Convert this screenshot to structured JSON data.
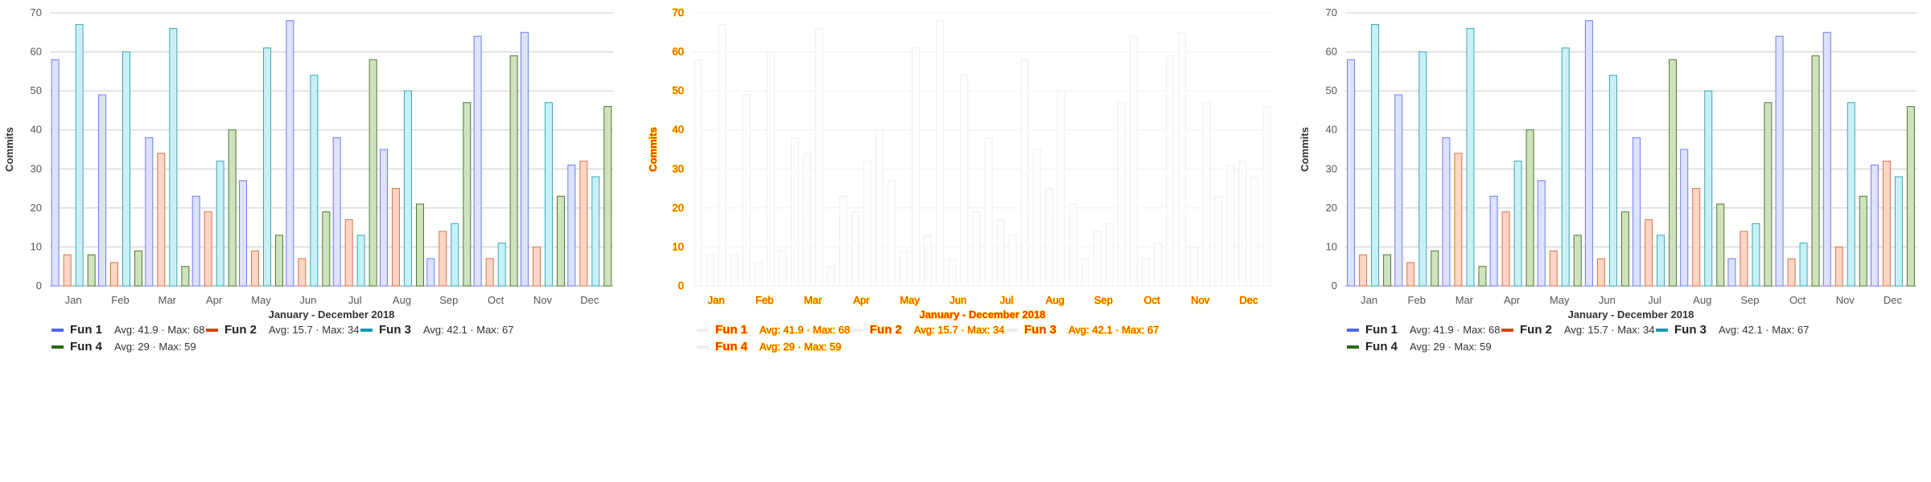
{
  "chart_data": {
    "type": "bar",
    "categories": [
      "Jan",
      "Feb",
      "Mar",
      "Apr",
      "May",
      "Jun",
      "Jul",
      "Aug",
      "Sep",
      "Oct",
      "Nov",
      "Dec"
    ],
    "series": [
      {
        "name": "Fun 1",
        "values": [
          58,
          49,
          38,
          23,
          27,
          68,
          38,
          35,
          7,
          64,
          65,
          31
        ],
        "stats": "Avg: 41.9 · Max: 68",
        "fill": "#dde2ff",
        "stroke": "#6f7cf0",
        "legend_color": "#5566ee"
      },
      {
        "name": "Fun 2",
        "values": [
          8,
          6,
          34,
          19,
          9,
          7,
          17,
          25,
          14,
          7,
          10,
          32
        ],
        "stats": "Avg: 15.7 · Max: 34",
        "fill": "#fbd6c6",
        "stroke": "#d9744a",
        "legend_color": "#cc4a14"
      },
      {
        "name": "Fun 3",
        "values": [
          67,
          60,
          66,
          32,
          61,
          54,
          13,
          50,
          16,
          11,
          47,
          28
        ],
        "stats": "Avg: 42.1 · Max: 67",
        "fill": "#c9f0f5",
        "stroke": "#3aa7bb",
        "legend_color": "#1699b0"
      },
      {
        "name": "Fun 4",
        "values": [
          8,
          9,
          5,
          40,
          13,
          19,
          58,
          21,
          47,
          59,
          23,
          46
        ],
        "stats": "Avg: 29 · Max: 59",
        "fill": "#cfe2c0",
        "stroke": "#4f7a2c",
        "legend_color": "#2d6b12"
      }
    ],
    "xlabel": "January - December 2018",
    "ylabel": "Commits",
    "ylim": [
      0,
      70
    ],
    "yticks": [
      0,
      10,
      20,
      30,
      40,
      50,
      60,
      70
    ],
    "grid": true,
    "legend_position": "bottom-left"
  }
}
